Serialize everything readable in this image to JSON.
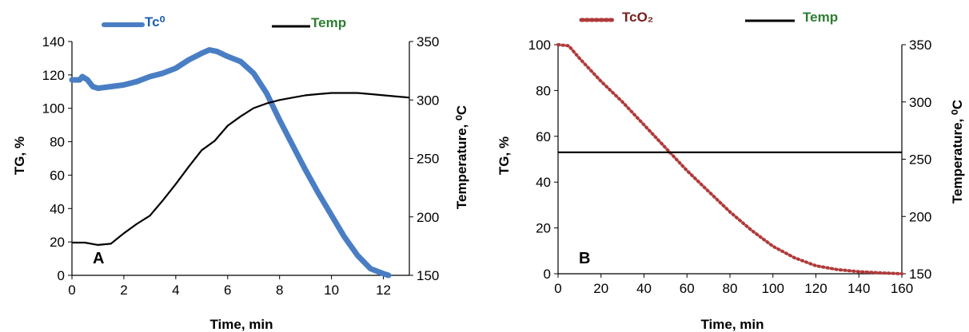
{
  "colors": {
    "tc_series": "#4a7ec4",
    "tc_legend_text": "#1f5fb0",
    "temp_series": "#000000",
    "temp_legend_text": "#2e7d32",
    "tco2_series": "#b03a3a",
    "tco2_legend_text": "#7b1c1c"
  },
  "chart_data": [
    {
      "type": "line",
      "panel_label": "A",
      "xlabel": "Time, min",
      "ylabel": "TG, %",
      "ylabel2": "Temperature, ⁰C",
      "xlim": [
        0,
        13
      ],
      "ylim": [
        0,
        140
      ],
      "y2lim": [
        150,
        350
      ],
      "xticks": [
        0,
        2,
        4,
        6,
        8,
        10,
        12
      ],
      "yticks": [
        0,
        20,
        40,
        60,
        80,
        100,
        120,
        140
      ],
      "y2ticks": [
        150,
        200,
        250,
        300,
        350
      ],
      "grid": false,
      "legend_position": "top",
      "series": [
        {
          "name": "Tc⁰",
          "axis": "left",
          "style": "thick-line",
          "x": [
            0,
            0.3,
            0.4,
            0.5,
            0.6,
            0.8,
            1.0,
            1.5,
            2.0,
            2.5,
            3.0,
            3.5,
            4.0,
            4.5,
            5.0,
            5.3,
            5.6,
            6.0,
            6.5,
            7.0,
            7.5,
            8.0,
            8.5,
            9.0,
            9.5,
            10.0,
            10.5,
            11.0,
            11.5,
            12.0,
            12.2
          ],
          "values": [
            117,
            117,
            119,
            118,
            117,
            113,
            112,
            113,
            114,
            116,
            119,
            121,
            124,
            129,
            133,
            135,
            134,
            131,
            128,
            121,
            109,
            93,
            78,
            63,
            49,
            36,
            23,
            12,
            4,
            1,
            0
          ]
        },
        {
          "name": "Temp",
          "axis": "right",
          "style": "line",
          "x": [
            0,
            0.5,
            1.0,
            1.5,
            2.0,
            2.5,
            3.0,
            3.5,
            4.0,
            4.5,
            5.0,
            5.5,
            6.0,
            6.5,
            7.0,
            7.5,
            8.0,
            8.5,
            9.0,
            9.5,
            10.0,
            10.5,
            11.0,
            11.5,
            12.0,
            12.5,
            13.0
          ],
          "values": [
            178,
            178,
            176,
            177,
            186,
            194,
            201,
            214,
            228,
            243,
            257,
            265,
            278,
            286,
            293,
            297,
            300,
            302,
            304,
            305,
            306,
            306,
            306,
            305,
            304,
            303,
            302
          ]
        }
      ]
    },
    {
      "type": "line",
      "panel_label": "B",
      "xlabel": "Time, min",
      "ylabel": "TG, %",
      "ylabel2": "Temperature, ⁰C",
      "xlim": [
        0,
        160
      ],
      "ylim": [
        0,
        100
      ],
      "y2lim": [
        150,
        350
      ],
      "xticks": [
        0,
        20,
        40,
        60,
        80,
        100,
        120,
        140,
        160
      ],
      "yticks": [
        0,
        20,
        40,
        60,
        80,
        100
      ],
      "y2ticks": [
        150,
        200,
        250,
        300,
        350
      ],
      "grid": false,
      "legend_position": "top",
      "series": [
        {
          "name": "TcO₂",
          "axis": "left",
          "style": "dotted",
          "x": [
            0,
            5,
            10,
            20,
            30,
            40,
            50,
            60,
            70,
            80,
            90,
            100,
            110,
            120,
            130,
            140,
            150,
            160
          ],
          "values": [
            100,
            99.5,
            94,
            84,
            75,
            65,
            55,
            45,
            36,
            27,
            19,
            12,
            7,
            3.5,
            1.8,
            0.9,
            0.4,
            0
          ]
        },
        {
          "name": "Temp",
          "axis": "right",
          "style": "line",
          "x": [
            0,
            160
          ],
          "values": [
            256,
            256
          ]
        }
      ]
    }
  ]
}
